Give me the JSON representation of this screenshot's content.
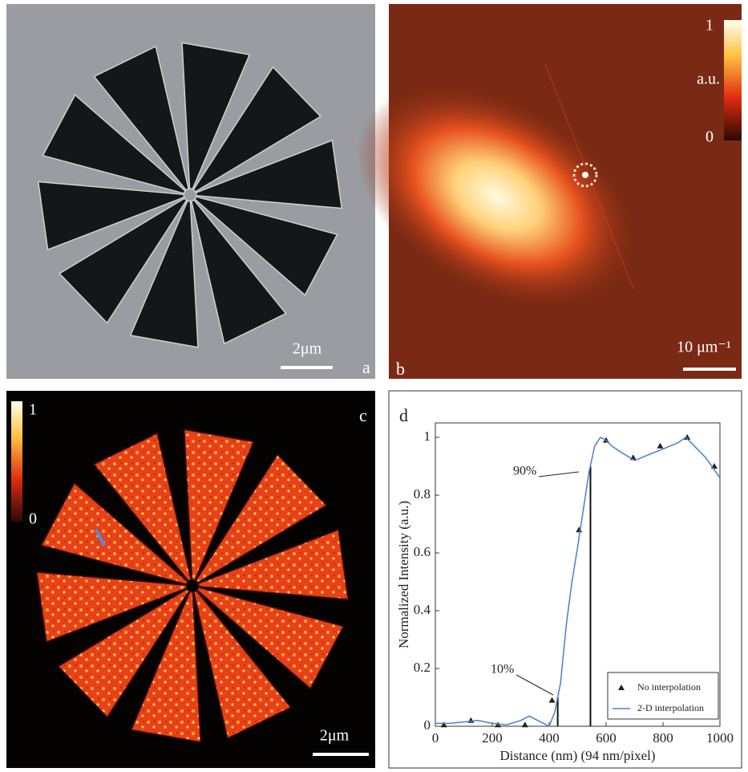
{
  "panels": {
    "a": {
      "label": "a",
      "scale_bar": "2μm"
    },
    "b": {
      "label": "b",
      "scale_bar": "10 μm⁻¹",
      "colorbar_ticks": [
        "1",
        "a.u.",
        "0"
      ]
    },
    "c": {
      "label": "c",
      "scale_bar": "2μm",
      "colorbar_ticks": [
        "1",
        "0"
      ]
    }
  },
  "chart_data": {
    "type": "line",
    "panel_label": "d",
    "xlabel": "Distance (nm) (94 nm/pixel)",
    "ylabel": "Normalized Intensity (a.u.)",
    "xlim": [
      0,
      1000
    ],
    "ylim": [
      0,
      1.05
    ],
    "xticks": [
      0,
      200,
      400,
      600,
      800,
      1000
    ],
    "yticks": [
      0,
      0.2,
      0.4,
      0.6,
      0.8,
      1
    ],
    "series": [
      {
        "name": "No interpolation",
        "marker": "triangle",
        "color": "#222222",
        "x": [
          30,
          125,
          220,
          315,
          410,
          505,
          600,
          695,
          790,
          885,
          980
        ],
        "values": [
          0.005,
          0.02,
          0.005,
          0.005,
          0.09,
          0.68,
          0.99,
          0.93,
          0.97,
          1.0,
          0.9
        ]
      },
      {
        "name": "2-D interpolation",
        "color": "#4a7fc8",
        "x": [
          0,
          50,
          100,
          150,
          200,
          250,
          300,
          330,
          360,
          400,
          420,
          440,
          460,
          480,
          500,
          520,
          540,
          560,
          580,
          600,
          620,
          650,
          700,
          750,
          800,
          850,
          880,
          900,
          950,
          1000
        ],
        "values": [
          0.01,
          0.01,
          0.015,
          0.02,
          0.01,
          0.005,
          0.02,
          0.035,
          0.02,
          0.0,
          0.05,
          0.15,
          0.35,
          0.5,
          0.62,
          0.75,
          0.88,
          0.97,
          1.0,
          0.99,
          0.97,
          0.95,
          0.92,
          0.94,
          0.96,
          0.98,
          1.0,
          0.98,
          0.93,
          0.86
        ]
      }
    ],
    "reference_lines": {
      "x": [
        430,
        545
      ],
      "values": [
        0.1,
        0.9
      ]
    },
    "annotations": [
      "10%",
      "90%"
    ]
  }
}
